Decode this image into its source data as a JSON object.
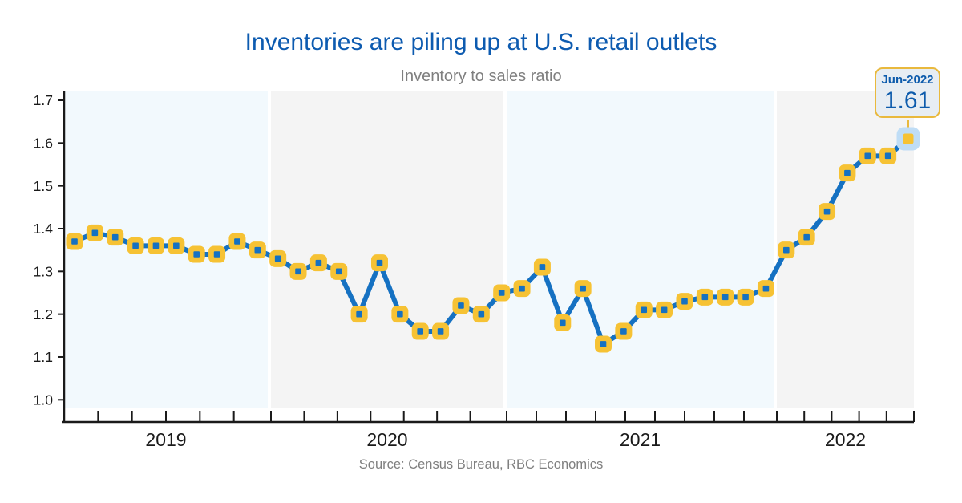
{
  "title": "Inventories are piling up at U.S. retail outlets",
  "subtitle": "Inventory to sales ratio",
  "source": "Source: Census Bureau, RBC Economics",
  "callout": {
    "date_label": "Jun-2022",
    "value_label": "1.61"
  },
  "y_axis": {
    "tick_labels": [
      "1.7",
      "1.6",
      "1.5",
      "1.4",
      "1.3",
      "1.2",
      "1.1",
      "1.0"
    ],
    "min": 1.0,
    "max": 1.7
  },
  "x_axis": {
    "year_labels": [
      "2019",
      "2020",
      "2021",
      "2022"
    ]
  },
  "colors": {
    "title_blue": "#0d5bb0",
    "line_blue": "#1571c2",
    "marker_gold": "#f6c234",
    "band_blue": "#f2f9fd",
    "band_gray": "#f4f4f4",
    "axis_black": "#1a1a1a",
    "muted_gray": "#7f7f7f",
    "callout_bg": "#e7edf3",
    "callout_border": "#e9b93d",
    "highlight_halo": "#bfddf6"
  },
  "chart_data": {
    "type": "line",
    "title": "Inventories are piling up at U.S. retail outlets",
    "subtitle": "Inventory to sales ratio",
    "x": [
      "Jan-2019",
      "Feb-2019",
      "Mar-2019",
      "Apr-2019",
      "May-2019",
      "Jun-2019",
      "Jul-2019",
      "Aug-2019",
      "Sep-2019",
      "Oct-2019",
      "Nov-2019",
      "Dec-2019",
      "Jan-2020",
      "Feb-2020",
      "Mar-2020",
      "Apr-2020",
      "May-2020",
      "Jun-2020",
      "Jul-2020",
      "Aug-2020",
      "Sep-2020",
      "Oct-2020",
      "Nov-2020",
      "Dec-2020",
      "Jan-2021",
      "Feb-2021",
      "Mar-2021",
      "Apr-2021",
      "May-2021",
      "Jun-2021",
      "Jul-2021",
      "Aug-2021",
      "Sep-2021",
      "Oct-2021",
      "Nov-2021",
      "Dec-2021",
      "Jan-2022",
      "Feb-2022",
      "Mar-2022",
      "Apr-2022",
      "May-2022",
      "Jun-2022"
    ],
    "values": [
      1.37,
      1.39,
      1.38,
      1.36,
      1.36,
      1.36,
      1.34,
      1.34,
      1.37,
      1.35,
      1.33,
      1.3,
      1.32,
      1.3,
      1.2,
      1.32,
      1.2,
      1.16,
      1.16,
      1.22,
      1.2,
      1.25,
      1.26,
      1.31,
      1.18,
      1.26,
      1.13,
      1.16,
      1.21,
      1.21,
      1.23,
      1.24,
      1.24,
      1.24,
      1.26,
      1.35,
      1.38,
      1.44,
      1.53,
      1.57,
      1.57,
      1.61
    ],
    "ylim": [
      1.0,
      1.7
    ],
    "xlabel": "",
    "ylabel": "",
    "grid": false,
    "legend": "none",
    "highlight_last_point": {
      "label": "Jun-2022",
      "value": 1.61
    }
  }
}
